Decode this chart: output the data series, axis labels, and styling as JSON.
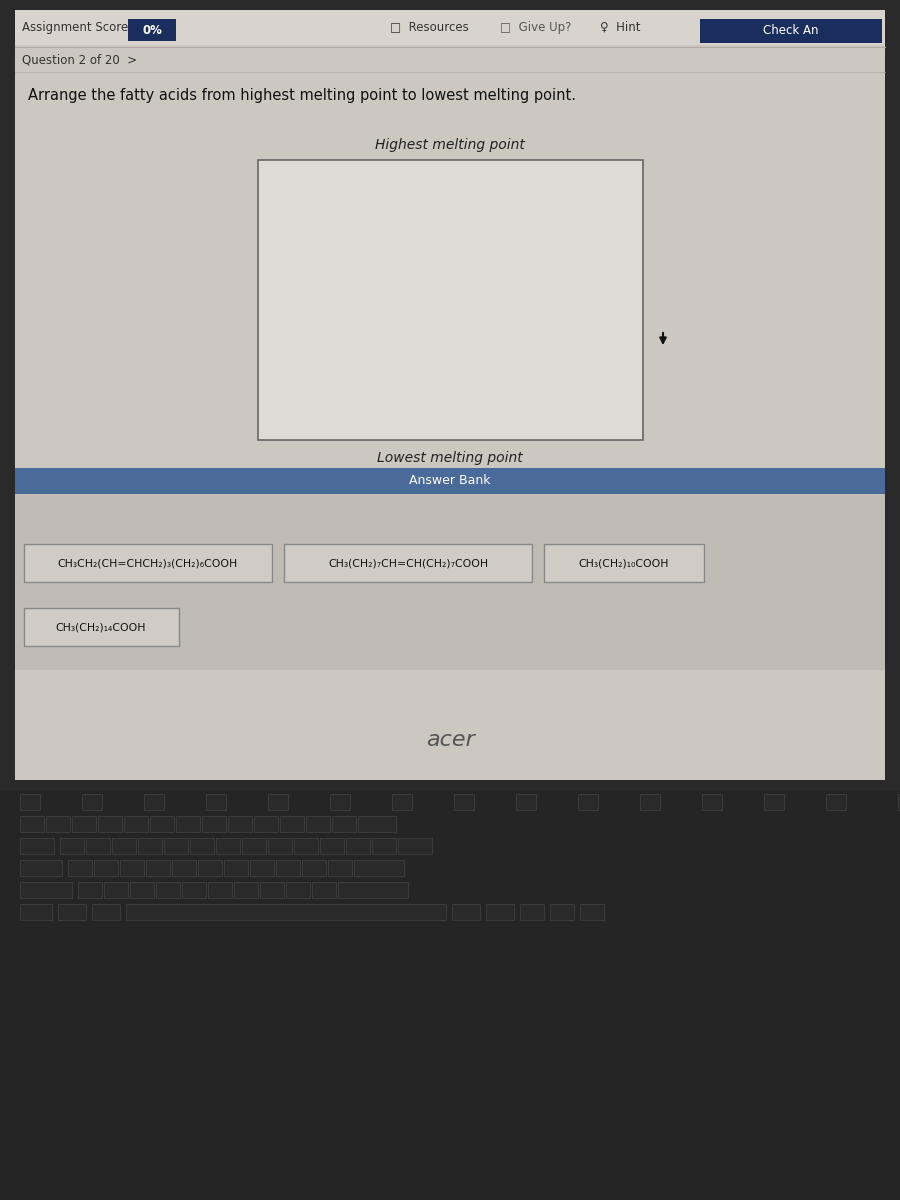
{
  "bg_color": "#ccc8c0",
  "screen_bg": "#ccc8c0",
  "top_bar_bg": "#d8d4cd",
  "score_box_color": "#1a2e5e",
  "score_text": "0%",
  "assignment_score_label": "Assignment Score:",
  "resources_text": "Resources",
  "give_up_text": "Give Up?",
  "hint_text": "Hint",
  "check_ans_text": "Check An",
  "check_ans_bg": "#1a2e5e",
  "question_label": "Question 2 of 20",
  "question_text": "Arrange the fatty acids from highest melting point to lowest melting point.",
  "highest_label": "Highest melting point",
  "lowest_label": "Lowest melting point",
  "drop_box_color": "#dedad4",
  "drop_box_border": "#666666",
  "answer_bank_label": "Answer Bank",
  "answer_bank_bar_color": "#4a6a9a",
  "answer_bank_bg": "#c0bbb4",
  "compound1": "CH₃CH₂(CH=CHCH₂)₃(CH₂)₆COOH",
  "compound2": "CH₃(CH₂)₇CH=CH(CH₂)₇COOH",
  "compound3": "CH₃(CH₂)₁₀COOH",
  "compound4": "CH₃(CH₂)₁₄COOH",
  "compound_box_color": "#d0ccc5",
  "compound_box_border": "#888888",
  "keyboard_bg": "#1e1e1e",
  "screen_frame_color": "#2a2a2a",
  "laptop_base_color": "#252525",
  "key_color": "#2a2a2a",
  "key_border": "#444444",
  "acer_color": "#555555",
  "cursor_color": "#111111",
  "sep_line_color": "#b0aca5"
}
